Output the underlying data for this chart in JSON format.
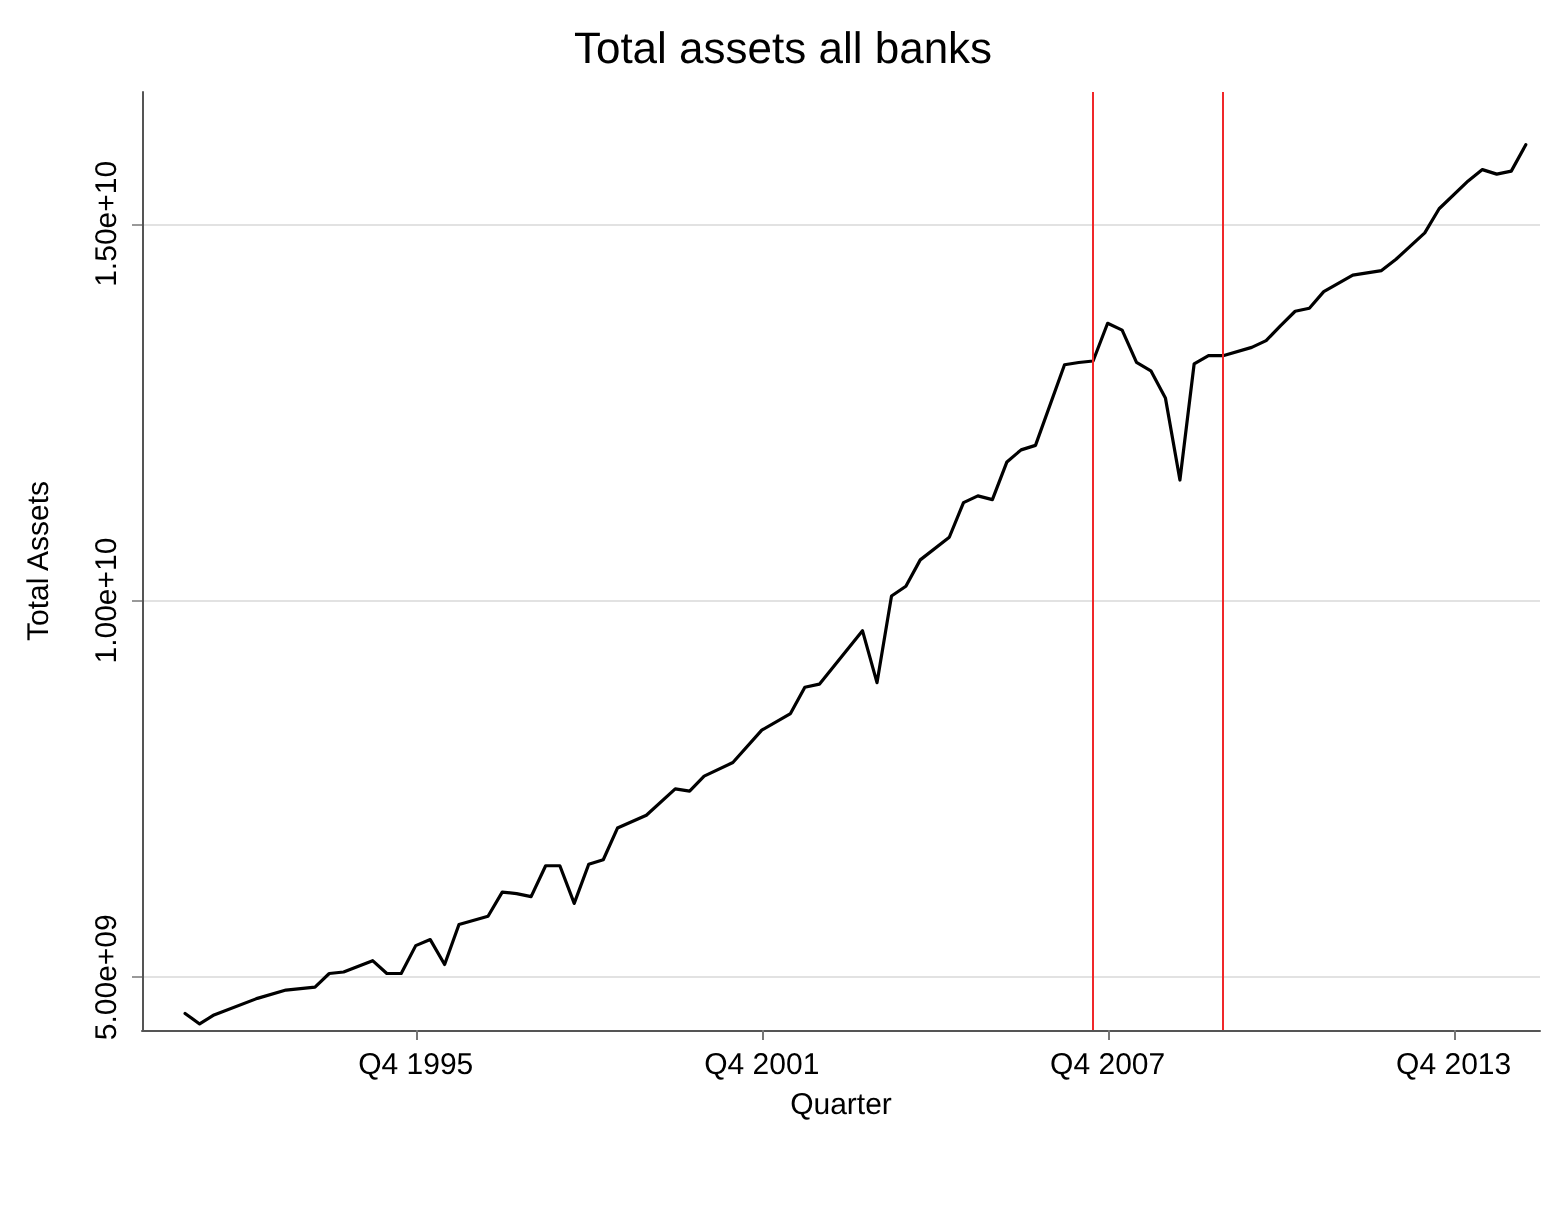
{
  "chart_data": {
    "type": "line",
    "title": "Total assets all banks",
    "xlabel": "Quarter",
    "ylabel": "Total Assets",
    "x": [
      "1991-10",
      "1992-01",
      "1992-04",
      "1993-01",
      "1993-07",
      "1994-01",
      "1994-04",
      "1994-07",
      "1995-01",
      "1995-04",
      "1995-07",
      "1995-10",
      "1996-01",
      "1996-04",
      "1996-07",
      "1997-01",
      "1997-04",
      "1997-07",
      "1997-10",
      "1998-01",
      "1998-04",
      "1998-07",
      "1998-10",
      "1999-01",
      "1999-04",
      "1999-10",
      "2000-04",
      "2000-07",
      "2000-10",
      "2001-04",
      "2001-10",
      "2002-04",
      "2002-07",
      "2002-10",
      "2003-07",
      "2003-10",
      "2004-01",
      "2004-04",
      "2004-07",
      "2005-01",
      "2005-04",
      "2005-07",
      "2005-10",
      "2006-01",
      "2006-04",
      "2006-07",
      "2007-01",
      "2007-04",
      "2007-07",
      "2007-10",
      "2008-01",
      "2008-04",
      "2008-07",
      "2008-10",
      "2009-01",
      "2009-04",
      "2009-07",
      "2009-10",
      "2010-04",
      "2010-07",
      "2010-10",
      "2011-01",
      "2011-04",
      "2011-07",
      "2012-01",
      "2012-07",
      "2012-10",
      "2013-04",
      "2013-07",
      "2014-01",
      "2014-04",
      "2014-07",
      "2014-10",
      "2015-01"
    ],
    "series": [
      {
        "color": "#000000",
        "values": [
          4520000000,
          4380000000,
          4500000000,
          4720000000,
          4830000000,
          4870000000,
          5050000000,
          5070000000,
          5220000000,
          5050000000,
          5050000000,
          5420000000,
          5500000000,
          5170000000,
          5700000000,
          5810000000,
          6130000000,
          6110000000,
          6070000000,
          6480000000,
          6480000000,
          5980000000,
          6500000000,
          6560000000,
          6980000000,
          7150000000,
          7500000000,
          7470000000,
          7670000000,
          7850000000,
          8280000000,
          8500000000,
          8850000000,
          8890000000,
          9600000000,
          8910000000,
          10060000000,
          10190000000,
          10540000000,
          10840000000,
          11300000000,
          11390000000,
          11340000000,
          11840000000,
          12000000000,
          12060000000,
          13130000000,
          13160000000,
          13180000000,
          13680000000,
          13590000000,
          13160000000,
          13050000000,
          12690000000,
          11600000000,
          13140000000,
          13250000000,
          13250000000,
          13360000000,
          13450000000,
          13650000000,
          13840000000,
          13880000000,
          14100000000,
          14320000000,
          14380000000,
          14530000000,
          14880000000,
          15200000000,
          15570000000,
          15720000000,
          15660000000,
          15700000000,
          16050000000
        ]
      }
    ],
    "xlim": [
      "1991-01",
      "2015-04"
    ],
    "xticks": [
      {
        "value": "1995-10",
        "label": "Q4 1995"
      },
      {
        "value": "2001-10",
        "label": "Q4 2001"
      },
      {
        "value": "2007-10",
        "label": "Q4 2007"
      },
      {
        "value": "2013-10",
        "label": "Q4 2013"
      }
    ],
    "ylim": [
      4300000000,
      16750000000
    ],
    "yticks": [
      {
        "value": 5000000000,
        "label": "5.00e+09"
      },
      {
        "value": 10000000000,
        "label": "1.00e+10"
      },
      {
        "value": 15000000000,
        "label": "1.50e+10"
      }
    ],
    "grid": "y",
    "ref_lines": [
      {
        "axis": "x",
        "value": "2007-07",
        "color": "#f0282a"
      },
      {
        "axis": "x",
        "value": "2009-10",
        "color": "#f0282a"
      }
    ]
  }
}
